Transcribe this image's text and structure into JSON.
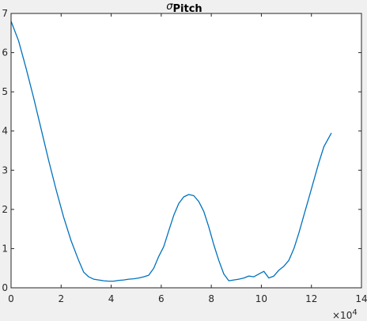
{
  "chart_data": {
    "type": "line",
    "title_symbol": "σ",
    "title_subscript": "Pitch",
    "xlabel": "",
    "ylabel": "",
    "x_exponent_base": "×10",
    "x_exponent_power": "4",
    "xlim": [
      0,
      14
    ],
    "ylim": [
      0,
      7
    ],
    "x_ticks": [
      0,
      2,
      4,
      6,
      8,
      10,
      12,
      14
    ],
    "y_ticks": [
      0,
      1,
      2,
      3,
      4,
      5,
      6,
      7
    ],
    "grid": false,
    "series": [
      {
        "color": "#0072bd",
        "x": [
          0.0,
          0.3,
          0.6,
          0.9,
          1.2,
          1.5,
          1.8,
          2.1,
          2.4,
          2.7,
          2.9,
          3.1,
          3.3,
          3.5,
          3.7,
          3.9,
          4.1,
          4.3,
          4.5,
          4.7,
          4.9,
          5.1,
          5.3,
          5.5,
          5.7,
          5.9,
          6.1,
          6.3,
          6.5,
          6.7,
          6.9,
          7.1,
          7.3,
          7.5,
          7.7,
          7.9,
          8.1,
          8.3,
          8.5,
          8.7,
          8.9,
          9.1,
          9.3,
          9.5,
          9.7,
          9.9,
          10.1,
          10.3,
          10.5,
          10.7,
          10.9,
          11.1,
          11.3,
          11.5,
          11.7,
          11.9,
          12.1,
          12.3,
          12.5,
          12.8
        ],
        "y": [
          6.8,
          6.3,
          5.6,
          4.85,
          4.05,
          3.25,
          2.5,
          1.8,
          1.2,
          0.7,
          0.4,
          0.28,
          0.22,
          0.2,
          0.18,
          0.17,
          0.17,
          0.19,
          0.2,
          0.22,
          0.23,
          0.25,
          0.28,
          0.32,
          0.5,
          0.8,
          1.05,
          1.45,
          1.85,
          2.15,
          2.32,
          2.38,
          2.35,
          2.2,
          1.95,
          1.55,
          1.1,
          0.7,
          0.35,
          0.18,
          0.2,
          0.22,
          0.25,
          0.3,
          0.28,
          0.35,
          0.42,
          0.25,
          0.3,
          0.45,
          0.55,
          0.7,
          1.0,
          1.4,
          1.85,
          2.3,
          2.75,
          3.2,
          3.6,
          3.95
        ]
      }
    ]
  }
}
